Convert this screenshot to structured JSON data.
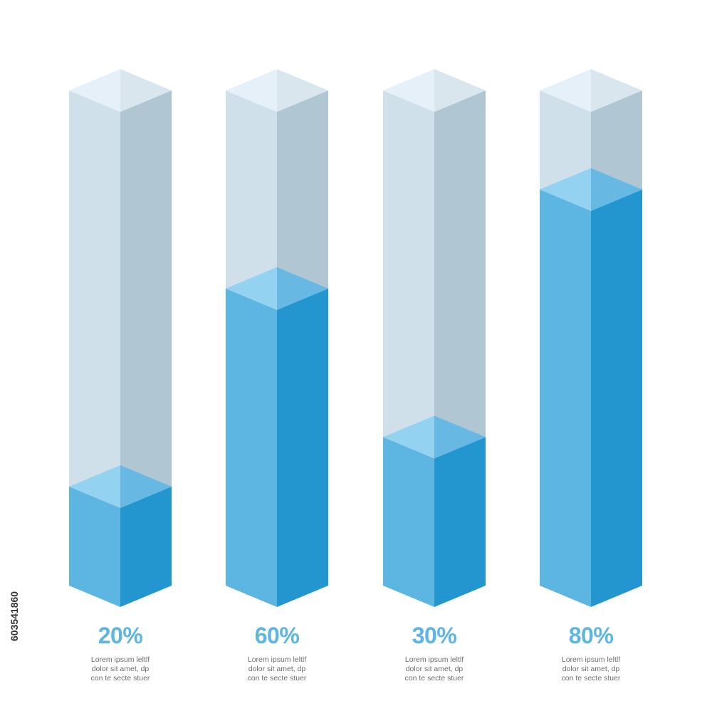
{
  "chart_data": {
    "type": "bar",
    "subtype": "isometric-3d-progress-columns",
    "max": 100,
    "categories": [
      "20%",
      "60%",
      "30%",
      "80%"
    ],
    "values": [
      20,
      60,
      30,
      80
    ],
    "value_labels": [
      "20%",
      "60%",
      "30%",
      "80%"
    ],
    "descriptions": [
      [
        "Lorem ipsum leltlf",
        "dolor sit amet, dp",
        "con te secte stuer"
      ],
      [
        "Lorem ipsum leltlf",
        "dolor sit amet, dp",
        "con te secte stuer"
      ],
      [
        "Lorem ipsum leltlf",
        "dolor sit amet, dp",
        "con te secte stuer"
      ],
      [
        "Lorem ipsum leltlf",
        "dolor sit amet, dp",
        "con te secte stuer"
      ]
    ],
    "colors": {
      "fill_left": "#5db5e2",
      "fill_right": "#2496cf",
      "fill_top": "#93d2f0",
      "fill_top_right": "#67b9e4",
      "empty_left": "#d0e0eb",
      "empty_right": "#b0c6d3",
      "empty_top_left": "#e6f0f8",
      "empty_top_right": "#d9e6ee",
      "label": "#5db5e2",
      "text": "#6d6e71"
    },
    "title": "",
    "xlabel": "",
    "ylabel": "",
    "grid": false,
    "legend": "none"
  },
  "watermark": {
    "stock_id": "603541860"
  }
}
